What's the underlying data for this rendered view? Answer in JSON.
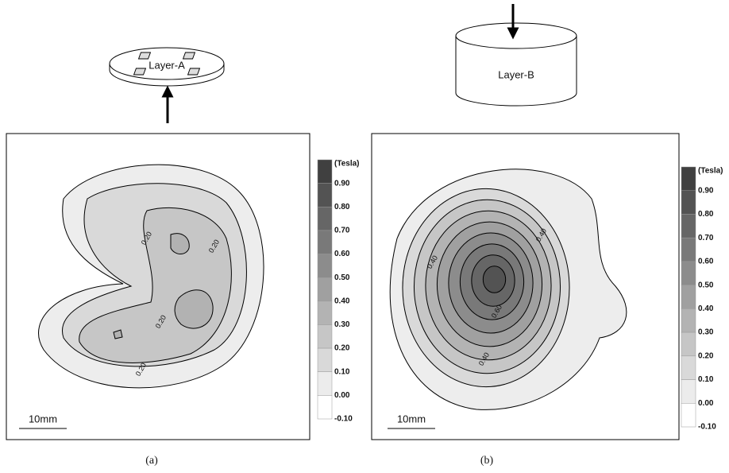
{
  "panels": [
    {
      "device_label": "Layer-A",
      "colorbar": {
        "unit": "(Tesla)",
        "levels": [
          "0.90",
          "0.80",
          "0.70",
          "0.60",
          "0.50",
          "0.40",
          "0.30",
          "0.20",
          "0.10",
          "0.00",
          "-0.10"
        ]
      },
      "contour_labels": [
        "0.20",
        "0.20",
        "0.20",
        "0.20"
      ],
      "scale_bar": "10mm",
      "caption": "(a)"
    },
    {
      "device_label": "Layer-B",
      "colorbar": {
        "unit": "(Tesla)",
        "levels": [
          "0.90",
          "0.80",
          "0.70",
          "0.60",
          "0.50",
          "0.40",
          "0.30",
          "0.20",
          "0.10",
          "0.00",
          "-0.10"
        ]
      },
      "contour_labels": [
        "0.40",
        "0.40",
        "0.40",
        "0.60"
      ],
      "scale_bar": "10mm",
      "caption": "(b)"
    }
  ]
}
